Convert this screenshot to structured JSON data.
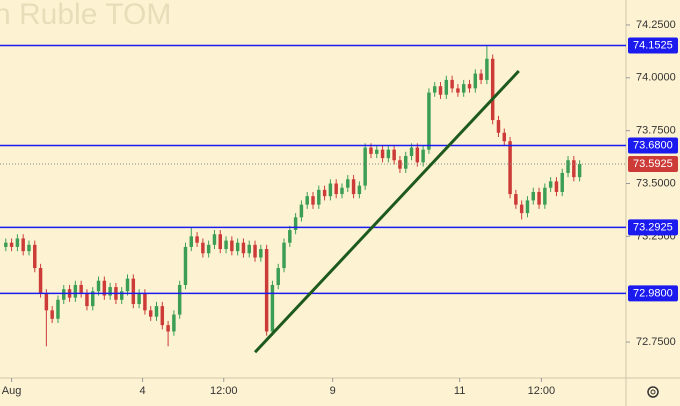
{
  "chart_data": {
    "type": "candlestick",
    "watermark": "n Ruble TOM",
    "open": [
      73.2,
      73.22,
      73.2,
      73.24,
      73.18,
      73.21,
      73.1,
      72.98,
      72.9,
      72.86,
      72.95,
      73.0,
      72.96,
      73.02,
      72.98,
      72.92,
      72.99,
      73.04,
      72.97,
      73.01,
      72.95,
      72.99,
      73.05,
      72.93,
      72.98,
      72.9,
      72.87,
      72.92,
      72.83,
      72.8,
      72.88,
      73.02,
      73.2,
      73.25,
      73.22,
      73.17,
      73.21,
      73.26,
      73.19,
      73.23,
      73.18,
      73.22,
      73.17,
      73.21,
      73.15,
      73.19,
      72.8,
      73.02,
      73.1,
      73.22,
      73.28,
      73.34,
      73.4,
      73.44,
      73.4,
      73.47,
      73.44,
      73.5,
      73.45,
      73.48,
      73.52,
      73.45,
      73.49,
      73.67,
      73.64,
      73.66,
      73.62,
      73.66,
      73.61,
      73.57,
      73.63,
      73.67,
      73.6,
      73.66,
      73.93,
      73.96,
      73.92,
      73.99,
      73.95,
      73.93,
      73.97,
      73.95,
      74.02,
      73.99,
      74.09,
      73.8,
      73.74,
      73.7,
      73.45,
      73.4,
      73.36,
      73.42,
      73.46,
      73.4,
      73.48,
      73.51,
      73.46,
      73.55,
      73.61,
      73.53
    ],
    "high": [
      73.24,
      73.24,
      73.26,
      73.26,
      73.23,
      73.23,
      73.12,
      73.0,
      72.92,
      72.97,
      73.02,
      73.02,
      73.04,
      73.04,
      73.0,
      73.01,
      73.06,
      73.06,
      73.03,
      73.03,
      73.01,
      73.07,
      73.07,
      73.0,
      73.0,
      72.92,
      72.94,
      72.94,
      72.85,
      72.9,
      73.04,
      73.22,
      73.29,
      73.27,
      73.24,
      73.23,
      73.28,
      73.28,
      73.25,
      73.25,
      73.24,
      73.24,
      73.23,
      73.23,
      73.21,
      73.21,
      73.04,
      73.12,
      73.24,
      73.3,
      73.36,
      73.42,
      73.46,
      73.46,
      73.49,
      73.49,
      73.52,
      73.52,
      73.5,
      73.54,
      73.54,
      73.51,
      73.69,
      73.69,
      73.68,
      73.68,
      73.68,
      73.68,
      73.63,
      73.65,
      73.69,
      73.69,
      73.68,
      73.95,
      73.98,
      73.98,
      74.01,
      74.01,
      73.97,
      73.99,
      73.99,
      74.04,
      74.04,
      74.15,
      74.11,
      73.82,
      73.76,
      73.72,
      73.47,
      73.42,
      73.44,
      73.48,
      73.48,
      73.5,
      73.53,
      73.53,
      73.57,
      73.63,
      73.63,
      73.61
    ],
    "low": [
      73.18,
      73.18,
      73.18,
      73.16,
      73.16,
      73.08,
      72.96,
      72.73,
      72.84,
      72.84,
      72.93,
      72.94,
      72.94,
      72.96,
      72.9,
      72.9,
      72.97,
      72.95,
      72.95,
      72.93,
      72.93,
      72.97,
      72.91,
      72.91,
      72.88,
      72.85,
      72.85,
      72.81,
      72.73,
      72.78,
      72.86,
      73.0,
      73.18,
      73.2,
      73.15,
      73.15,
      73.19,
      73.17,
      73.17,
      73.16,
      73.16,
      73.15,
      73.15,
      73.13,
      73.13,
      72.78,
      72.78,
      73.0,
      73.08,
      73.2,
      73.26,
      73.32,
      73.38,
      73.38,
      73.38,
      73.42,
      73.42,
      73.43,
      73.43,
      73.46,
      73.43,
      73.43,
      73.47,
      73.62,
      73.62,
      73.6,
      73.6,
      73.59,
      73.55,
      73.55,
      73.61,
      73.58,
      73.58,
      73.64,
      73.91,
      73.9,
      73.9,
      73.93,
      73.91,
      73.91,
      73.93,
      73.93,
      73.97,
      73.97,
      73.78,
      73.72,
      73.68,
      73.43,
      73.38,
      73.33,
      73.34,
      73.4,
      73.38,
      73.38,
      73.46,
      73.44,
      73.44,
      73.53,
      73.51,
      73.51
    ],
    "close": [
      73.22,
      73.2,
      73.24,
      73.18,
      73.21,
      73.1,
      72.98,
      72.9,
      72.86,
      72.95,
      73.0,
      72.96,
      73.02,
      72.98,
      72.92,
      72.99,
      73.04,
      72.97,
      73.01,
      72.95,
      72.99,
      73.05,
      72.93,
      72.98,
      72.9,
      72.87,
      72.92,
      72.83,
      72.8,
      72.88,
      73.02,
      73.2,
      73.25,
      73.22,
      73.17,
      73.21,
      73.26,
      73.19,
      73.23,
      73.18,
      73.22,
      73.17,
      73.21,
      73.15,
      73.19,
      72.8,
      73.02,
      73.1,
      73.22,
      73.28,
      73.34,
      73.4,
      73.44,
      73.4,
      73.47,
      73.44,
      73.5,
      73.45,
      73.48,
      73.52,
      73.45,
      73.49,
      73.67,
      73.64,
      73.66,
      73.62,
      73.66,
      73.61,
      73.57,
      73.63,
      73.67,
      73.6,
      73.66,
      73.93,
      73.96,
      73.92,
      73.99,
      73.95,
      73.93,
      73.97,
      73.95,
      74.02,
      73.99,
      74.09,
      73.8,
      73.74,
      73.7,
      73.45,
      73.4,
      73.36,
      73.42,
      73.46,
      73.4,
      73.48,
      73.51,
      73.46,
      73.55,
      73.61,
      73.53,
      73.5925
    ],
    "up_color": "#3c9e55",
    "down_color": "#cc3b37",
    "xlim": [
      -1,
      107
    ],
    "xticks": [
      {
        "value": 1,
        "label": "Aug"
      },
      {
        "value": 23.6,
        "label": "4"
      },
      {
        "value": 37.6,
        "label": "12:00"
      },
      {
        "value": 56.4,
        "label": "9"
      },
      {
        "value": 78.3,
        "label": "11"
      },
      {
        "value": 92.4,
        "label": "12:00"
      }
    ],
    "ylim": [
      72.58,
      74.368
    ],
    "yticks": [
      {
        "value": 74.25,
        "label": "74.2500"
      },
      {
        "value": 74.0,
        "label": "74.0000"
      },
      {
        "value": 73.75,
        "label": "73.7500"
      },
      {
        "value": 73.5,
        "label": "73.5000"
      },
      {
        "value": 73.25,
        "label": "73.2500"
      },
      {
        "value": 72.75,
        "label": "72.7500"
      }
    ],
    "levels": [
      {
        "value": 74.1525,
        "label": "74.1525"
      },
      {
        "value": 73.68,
        "label": "73.6800"
      },
      {
        "value": 73.2925,
        "label": "73.2925"
      },
      {
        "value": 72.98,
        "label": "72.9800"
      }
    ],
    "level_color": "#1b1bf0",
    "last_price": {
      "value": 73.5925,
      "label": "73.5925"
    },
    "trendline": {
      "x": [
        43,
        88.5
      ],
      "y": [
        72.702,
        74.032
      ],
      "color": "#1e5a1e"
    }
  }
}
